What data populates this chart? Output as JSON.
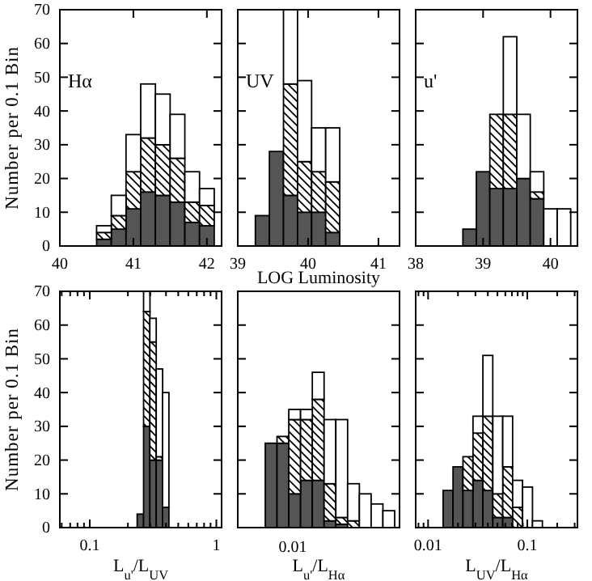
{
  "chart_data": [
    {
      "type": "bar",
      "stacked": true,
      "ylabel": "Number per 0.1 Bin",
      "annotations": [
        "Hα"
      ],
      "x": [
        40.6,
        40.8,
        41.0,
        41.2,
        41.4,
        41.6,
        41.8,
        42.0
      ],
      "series": [
        {
          "color": "#555555",
          "values": [
            2,
            5,
            11,
            16,
            15,
            13,
            7,
            6
          ]
        },
        {
          "color": "#000000",
          "values": [
            2,
            4,
            11,
            16,
            15,
            13,
            6,
            6
          ]
        },
        {
          "color": "#ffffff",
          "values": [
            2,
            6,
            11,
            16,
            15,
            13,
            9,
            5
          ]
        }
      ],
      "xlim": [
        40,
        42.2
      ],
      "xticks": [
        40,
        41,
        42
      ],
      "ylim": [
        0,
        70
      ],
      "yticks": [
        0,
        10,
        20,
        30,
        40,
        50,
        60,
        70
      ]
    },
    {
      "type": "bar",
      "stacked": true,
      "xlabel": "LOG Luminosity",
      "annotations": [
        "UV"
      ],
      "x": [
        39.35,
        39.55,
        39.75,
        39.95,
        40.15,
        40.35
      ],
      "series": [
        {
          "color": "#555555",
          "values": [
            9,
            28,
            15,
            10,
            10,
            4
          ]
        },
        {
          "color": "#000000",
          "values": [
            0,
            0,
            33,
            15,
            12,
            15
          ]
        },
        {
          "color": "#ffffff",
          "values": [
            0,
            0,
            22,
            24,
            13,
            16
          ]
        }
      ],
      "xlim": [
        39,
        41.3
      ],
      "xticks": [
        39,
        40,
        41
      ],
      "ylim": [
        0,
        70
      ],
      "yticks": [
        0,
        10,
        20,
        30,
        40,
        50,
        60,
        70
      ],
      "tick_labels": "x"
    },
    {
      "type": "bar",
      "stacked": true,
      "annotations": [
        "u'"
      ],
      "x": [
        38.8,
        39.0,
        39.2,
        39.4,
        39.6,
        39.8,
        40.0,
        40.2
      ],
      "series": [
        {
          "color": "#555555",
          "values": [
            5,
            22,
            17,
            17,
            20,
            14,
            0,
            0
          ]
        },
        {
          "color": "#000000",
          "values": [
            0,
            0,
            22,
            22,
            0,
            2,
            0,
            0
          ]
        },
        {
          "color": "#ffffff",
          "values": [
            0,
            0,
            0,
            23,
            19,
            6,
            11,
            11
          ]
        }
      ],
      "xlim": [
        38,
        40.4
      ],
      "xticks": [
        38,
        39,
        40
      ],
      "ylim": [
        0,
        70
      ],
      "yticks": [
        0,
        10,
        20,
        30,
        40,
        50,
        60,
        70
      ],
      "tick_labels": "x"
    },
    {
      "type": "bar",
      "stacked": true,
      "ylabel": "Number per 0.1 Bin",
      "xlabel": "L$_{u'}$/L$_{UV}$",
      "log": "x",
      "x": [
        0.251,
        0.282,
        0.316,
        0.355,
        0.398
      ],
      "series": [
        {
          "color": "#555555",
          "values": [
            4,
            30,
            20,
            20,
            6
          ]
        },
        {
          "color": "#000000",
          "values": [
            0,
            34,
            35,
            1,
            0
          ]
        },
        {
          "color": "#ffffff",
          "values": [
            0,
            6,
            7,
            26,
            34
          ]
        }
      ],
      "xlim": [
        0.058,
        1.1
      ],
      "xticks": [
        {
          "value": 0.06,
          "label": null
        },
        {
          "value": 0.07,
          "label": null
        },
        {
          "value": 0.08,
          "label": null
        },
        {
          "value": 0.09,
          "label": null
        },
        0.1,
        {
          "value": 0.2,
          "label": null
        },
        {
          "value": 0.3,
          "label": null
        },
        {
          "value": 0.4,
          "label": null
        },
        {
          "value": 0.5,
          "label": null
        },
        {
          "value": 0.6,
          "label": null
        },
        {
          "value": 0.7,
          "label": null
        },
        {
          "value": 0.8,
          "label": null
        },
        {
          "value": 0.9,
          "label": null
        },
        1
      ],
      "ylim": [
        0,
        70
      ],
      "yticks": [
        0,
        10,
        20,
        30,
        40,
        50,
        60,
        70
      ]
    },
    {
      "type": "bar",
      "stacked": true,
      "xlabel": "L$_{u'}$/L$_{Hα}$",
      "annotations": [
        "0.01"
      ],
      "categories": [
        null,
        null,
        null,
        null,
        null,
        null,
        null,
        null,
        null,
        null,
        null
      ],
      "series": [
        {
          "color": "#555555",
          "values": [
            25,
            25,
            10,
            14,
            14,
            2,
            1,
            0,
            0,
            0,
            0
          ]
        },
        {
          "color": "#000000",
          "values": [
            0,
            2,
            22,
            18,
            24,
            11,
            2,
            2,
            0,
            0,
            0
          ]
        },
        {
          "color": "#ffffff",
          "values": [
            0,
            0,
            3,
            3,
            8,
            19,
            29,
            11,
            10,
            7,
            5
          ]
        }
      ],
      "ylim": [
        0,
        70
      ],
      "yticks": [
        0,
        10,
        20,
        30,
        40,
        50,
        60,
        70
      ],
      "tick_labels": false
    },
    {
      "type": "bar",
      "stacked": true,
      "xlabel": "L$_{UV}$/L$_{Hα}$",
      "log": "x",
      "x": [
        0.0159,
        0.02,
        0.0252,
        0.0318,
        0.04,
        0.0504,
        0.0634,
        0.0798,
        0.1005,
        0.1265
      ],
      "series": [
        {
          "color": "#555555",
          "values": [
            11,
            18,
            11,
            14,
            11,
            3,
            3,
            0,
            0,
            0
          ]
        },
        {
          "color": "#000000",
          "values": [
            0,
            0,
            10,
            14,
            22,
            7,
            15,
            6,
            0,
            0
          ]
        },
        {
          "color": "#ffffff",
          "values": [
            0,
            0,
            0,
            5,
            18,
            23,
            15,
            8,
            12,
            2
          ]
        }
      ],
      "xlim": [
        0.0075,
        0.32
      ],
      "xticks": [
        {
          "value": 0.008,
          "label": null
        },
        {
          "value": 0.009,
          "label": null
        },
        0.01,
        {
          "value": 0.02,
          "label": null
        },
        {
          "value": 0.03,
          "label": null
        },
        {
          "value": 0.04,
          "label": null
        },
        {
          "value": 0.05,
          "label": null
        },
        {
          "value": 0.06,
          "label": null
        },
        {
          "value": 0.07,
          "label": null
        },
        {
          "value": 0.08,
          "label": null
        },
        {
          "value": 0.09,
          "label": null
        },
        0.1,
        {
          "value": 0.2,
          "label": null
        },
        {
          "value": 0.3,
          "label": null
        }
      ],
      "ylim": [
        0,
        70
      ],
      "yticks": [
        0,
        10,
        20,
        30,
        40,
        50,
        60,
        70
      ],
      "tick_labels": "x"
    }
  ]
}
